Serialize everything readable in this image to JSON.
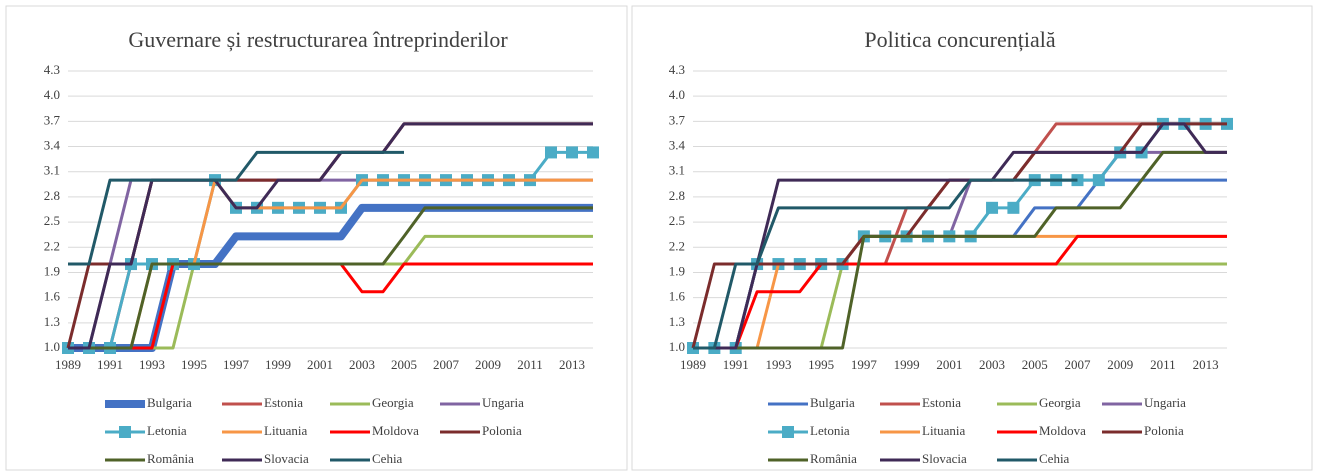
{
  "chart_data": [
    {
      "type": "line",
      "title": "Guvernare și restructurarea întreprinderilor",
      "x": [
        1989,
        1990,
        1991,
        1992,
        1993,
        1994,
        1995,
        1996,
        1997,
        1998,
        1999,
        2000,
        2001,
        2002,
        2003,
        2004,
        2005,
        2006,
        2007,
        2008,
        2009,
        2010,
        2011,
        2012,
        2013,
        2014
      ],
      "xlim": [
        1989,
        2014
      ],
      "xticks": [
        1989,
        1991,
        1993,
        1995,
        1997,
        1999,
        2001,
        2003,
        2005,
        2007,
        2009,
        2011,
        2013
      ],
      "ylim": [
        1,
        4.3
      ],
      "yticks": [
        {
          "value": 1,
          "label": "1.0"
        },
        1.3,
        1.6,
        1.9,
        2.2,
        2.5,
        2.8,
        3.1,
        3.4,
        3.7,
        {
          "value": 4,
          "label": "4.0"
        },
        4.3
      ],
      "series": [
        {
          "name": "Bulgaria",
          "color": "#4472c4",
          "width": 8,
          "values": [
            1,
            1,
            1,
            1,
            1,
            2,
            2,
            2,
            2.33,
            2.33,
            2.33,
            2.33,
            2.33,
            2.33,
            2.67,
            2.67,
            2.67,
            2.67,
            2.67,
            2.67,
            2.67,
            2.67,
            2.67,
            2.67,
            2.67,
            2.67
          ]
        },
        {
          "name": "Estonia",
          "color": "#c0504d",
          "values": [
            1,
            1,
            1,
            2,
            3,
            3,
            3,
            3,
            3,
            3,
            3,
            3,
            3,
            3.33,
            3.33,
            3.33,
            3.67,
            3.67,
            3.67,
            3.67,
            3.67,
            3.67,
            3.67,
            3.67,
            3.67,
            3.67
          ]
        },
        {
          "name": "Georgia",
          "color": "#9bbb59",
          "values": [
            1,
            1,
            1,
            1,
            1,
            1,
            2,
            2,
            2,
            2,
            2,
            2,
            2,
            2,
            2,
            2,
            2,
            2.33,
            2.33,
            2.33,
            2.33,
            2.33,
            2.33,
            2.33,
            2.33,
            2.33
          ]
        },
        {
          "name": "Ungaria",
          "color": "#8064a2",
          "values": [
            1,
            1,
            2,
            3,
            3,
            3,
            3,
            3,
            3,
            3,
            3,
            3,
            3,
            3,
            3,
            3,
            3,
            3,
            3,
            3,
            3,
            3,
            3,
            3,
            3,
            3
          ]
        },
        {
          "name": "Letonia",
          "color": "#4bacc6",
          "marker": "square",
          "values": [
            1,
            1,
            1,
            2,
            2,
            2,
            2,
            3,
            2.67,
            2.67,
            2.67,
            2.67,
            2.67,
            2.67,
            3,
            3,
            3,
            3,
            3,
            3,
            3,
            3,
            3,
            3.33,
            3.33,
            3.33
          ]
        },
        {
          "name": "Lituania",
          "color": "#f79646",
          "values": [
            1,
            1,
            1,
            1,
            2,
            2,
            2,
            3,
            2.67,
            2.67,
            2.67,
            2.67,
            2.67,
            2.67,
            3,
            3,
            3,
            3,
            3,
            3,
            3,
            3,
            3,
            3,
            3,
            3
          ]
        },
        {
          "name": "Moldova",
          "color": "#ff0000",
          "values": [
            1,
            1,
            1,
            1,
            1,
            2,
            2,
            2,
            2,
            2,
            2,
            2,
            2,
            2,
            1.67,
            1.67,
            2,
            2,
            2,
            2,
            2,
            2,
            2,
            2,
            2,
            2
          ]
        },
        {
          "name": "Polonia",
          "color": "#7b2c2c",
          "values": [
            1,
            2,
            2,
            2,
            3,
            3,
            3,
            3,
            3,
            3,
            3,
            3,
            3,
            3.33,
            3.33,
            3.33,
            3.67,
            3.67,
            3.67,
            3.67,
            3.67,
            3.67,
            3.67,
            3.67,
            3.67,
            3.67
          ]
        },
        {
          "name": "România",
          "color": "#4f6228",
          "values": [
            1,
            1,
            1,
            1,
            2,
            2,
            2,
            2,
            2,
            2,
            2,
            2,
            2,
            2,
            2,
            2,
            2.33,
            2.67,
            2.67,
            2.67,
            2.67,
            2.67,
            2.67,
            2.67,
            2.67,
            2.67
          ]
        },
        {
          "name": "Slovacia",
          "color": "#3f2a56",
          "values": [
            1,
            1,
            2,
            2,
            3,
            3,
            3,
            3,
            2.67,
            2.67,
            3,
            3,
            3,
            3.33,
            3.33,
            3.33,
            3.67,
            3.67,
            3.67,
            3.67,
            3.67,
            3.67,
            3.67,
            3.67,
            3.67,
            3.67
          ]
        },
        {
          "name": "Cehia",
          "color": "#215968",
          "values": [
            2,
            2,
            3,
            3,
            3,
            3,
            3,
            3,
            3,
            3.33,
            3.33,
            3.33,
            3.33,
            3.33,
            3.33,
            3.33,
            3.33,
            null,
            null,
            null,
            null,
            null,
            null,
            null,
            null,
            null
          ]
        }
      ]
    },
    {
      "type": "line",
      "title": "Politica concurențială",
      "x": [
        1989,
        1990,
        1991,
        1992,
        1993,
        1994,
        1995,
        1996,
        1997,
        1998,
        1999,
        2000,
        2001,
        2002,
        2003,
        2004,
        2005,
        2006,
        2007,
        2008,
        2009,
        2010,
        2011,
        2012,
        2013,
        2014
      ],
      "xlim": [
        1989,
        2014
      ],
      "xticks": [
        1989,
        1991,
        1993,
        1995,
        1997,
        1999,
        2001,
        2003,
        2005,
        2007,
        2009,
        2011,
        2013
      ],
      "ylim": [
        1,
        4.3
      ],
      "yticks": [
        {
          "value": 1,
          "label": "1.0"
        },
        1.3,
        1.6,
        1.9,
        2.2,
        2.5,
        2.8,
        3.1,
        3.4,
        3.7,
        {
          "value": 4,
          "label": "4.0"
        },
        4.3
      ],
      "series": [
        {
          "name": "Bulgaria",
          "color": "#4472c4",
          "values": [
            1,
            1,
            1,
            2,
            2,
            2,
            2,
            2,
            2.33,
            2.33,
            2.33,
            2.33,
            2.33,
            2.33,
            2.33,
            2.33,
            2.67,
            2.67,
            2.67,
            3,
            3,
            3,
            3,
            3,
            3,
            3
          ]
        },
        {
          "name": "Estonia",
          "color": "#c0504d",
          "values": [
            1,
            1,
            1,
            2,
            2,
            2,
            2,
            2,
            2,
            2,
            2.67,
            2.67,
            3,
            3,
            3,
            3,
            3.33,
            3.67,
            3.67,
            3.67,
            3.67,
            3.67,
            3.67,
            3.67,
            3.67,
            3.67
          ]
        },
        {
          "name": "Georgia",
          "color": "#9bbb59",
          "values": [
            1,
            1,
            1,
            1,
            1,
            1,
            1,
            2,
            2,
            2,
            2,
            2,
            2,
            2,
            2,
            2,
            2,
            2,
            2,
            2,
            2,
            2,
            2,
            2,
            2,
            2
          ]
        },
        {
          "name": "Ungaria",
          "color": "#8064a2",
          "values": [
            1,
            1,
            1,
            2,
            2,
            2,
            2,
            2,
            2.33,
            2.33,
            2.33,
            2.33,
            2.33,
            3,
            3,
            3,
            3,
            3,
            3,
            3,
            3.33,
            3.33,
            3.33,
            3.33,
            3.33,
            3.33
          ]
        },
        {
          "name": "Letonia",
          "color": "#4bacc6",
          "marker": "square",
          "values": [
            1,
            1,
            1,
            2,
            2,
            2,
            2,
            2,
            2.33,
            2.33,
            2.33,
            2.33,
            2.33,
            2.33,
            2.67,
            2.67,
            3,
            3,
            3,
            3,
            3.33,
            3.33,
            3.67,
            3.67,
            3.67,
            3.67
          ]
        },
        {
          "name": "Lituania",
          "color": "#f79646",
          "values": [
            1,
            1,
            1,
            1,
            2,
            2,
            2,
            2,
            2.33,
            2.33,
            2.33,
            2.33,
            2.33,
            2.33,
            2.33,
            2.33,
            2.33,
            2.33,
            2.33,
            2.33,
            2.33,
            2.33,
            2.33,
            2.33,
            2.33,
            2.33
          ]
        },
        {
          "name": "Moldova",
          "color": "#ff0000",
          "values": [
            1,
            1,
            1,
            1.67,
            1.67,
            1.67,
            2,
            2,
            2,
            2,
            2,
            2,
            2,
            2,
            2,
            2,
            2,
            2,
            2.33,
            2.33,
            2.33,
            2.33,
            2.33,
            2.33,
            2.33,
            2.33
          ]
        },
        {
          "name": "Polonia",
          "color": "#7b2c2c",
          "values": [
            1,
            2,
            2,
            2,
            2,
            2,
            2,
            2,
            2.33,
            2.33,
            2.33,
            2.67,
            3,
            3,
            3,
            3,
            3.33,
            3.33,
            3.33,
            3.33,
            3.33,
            3.67,
            3.67,
            3.67,
            3.67,
            3.67
          ]
        },
        {
          "name": "România",
          "color": "#4f6228",
          "values": [
            1,
            1,
            1,
            1,
            1,
            1,
            1,
            1,
            2.33,
            2.33,
            2.33,
            2.33,
            2.33,
            2.33,
            2.33,
            2.33,
            2.33,
            2.67,
            2.67,
            2.67,
            2.67,
            3,
            3.33,
            3.33,
            3.33,
            3.33
          ]
        },
        {
          "name": "Slovacia",
          "color": "#3f2a56",
          "values": [
            1,
            1,
            1,
            2,
            3,
            3,
            3,
            3,
            3,
            3,
            3,
            3,
            3,
            3,
            3,
            3.33,
            3.33,
            3.33,
            3.33,
            3.33,
            3.33,
            3.33,
            3.67,
            3.67,
            3.33,
            3.33
          ]
        },
        {
          "name": "Cehia",
          "color": "#215968",
          "values": [
            1,
            1,
            2,
            2,
            2.67,
            2.67,
            2.67,
            2.67,
            2.67,
            2.67,
            2.67,
            2.67,
            2.67,
            3,
            3,
            3,
            3,
            3,
            3,
            null,
            null,
            null,
            null,
            null,
            null,
            null
          ]
        }
      ]
    }
  ]
}
